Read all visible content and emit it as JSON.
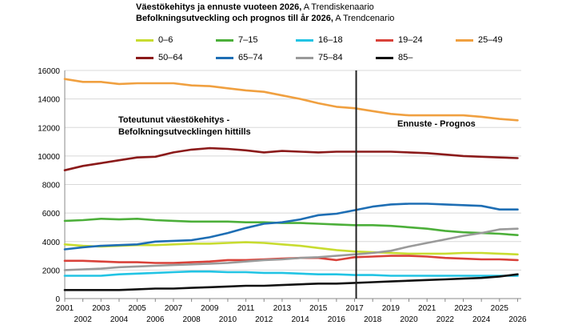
{
  "chart_data": {
    "type": "line",
    "title_fi_bold": "Väestökehitys ja ennuste vuoteen 2026,",
    "title_fi_rest": " A Trendiskenaario",
    "title_sv_bold": "Befolkningsutveckling och prognos till år 2026,",
    "title_sv_rest": " A Trendcenario",
    "x": [
      2001,
      2002,
      2003,
      2004,
      2005,
      2006,
      2007,
      2008,
      2009,
      2010,
      2011,
      2012,
      2013,
      2014,
      2015,
      2016,
      2017,
      2018,
      2019,
      2020,
      2021,
      2022,
      2023,
      2024,
      2025,
      2026
    ],
    "x_ticks_top": [
      "2001",
      "2003",
      "2005",
      "2007",
      "2009",
      "2011",
      "2013",
      "2015",
      "2017",
      "2019",
      "2021",
      "2023",
      "2025"
    ],
    "x_ticks_bottom": [
      "2002",
      "2004",
      "2006",
      "2008",
      "2010",
      "2012",
      "2014",
      "2016",
      "2018",
      "2020",
      "2022",
      "2024",
      "2026"
    ],
    "ylim": [
      0,
      16000
    ],
    "y_ticks": [
      "0",
      "2000",
      "4000",
      "6000",
      "8000",
      "10000",
      "12000",
      "14000",
      "16000"
    ],
    "y_tick_values": [
      0,
      2000,
      4000,
      6000,
      8000,
      10000,
      12000,
      14000,
      16000
    ],
    "grid": true,
    "forecast_start_year": 2017,
    "annotation_left_1": "Toteutunut väestökehitys -",
    "annotation_left_2": "Befolkningsutvecklingen hittills",
    "annotation_right": "Ennuste - Prognos",
    "series": [
      {
        "name": "0–6",
        "color": "#c8dc30",
        "values": [
          3800,
          3700,
          3650,
          3700,
          3750,
          3750,
          3800,
          3850,
          3850,
          3900,
          3950,
          3900,
          3800,
          3700,
          3550,
          3400,
          3300,
          3250,
          3200,
          3150,
          3150,
          3150,
          3200,
          3200,
          3150,
          3100
        ]
      },
      {
        "name": "7–15",
        "color": "#4caf3a",
        "values": [
          5450,
          5500,
          5600,
          5550,
          5600,
          5500,
          5450,
          5400,
          5400,
          5400,
          5350,
          5350,
          5300,
          5300,
          5250,
          5200,
          5150,
          5150,
          5100,
          5000,
          4900,
          4750,
          4650,
          4600,
          4550,
          4450
        ]
      },
      {
        "name": "16–18",
        "color": "#22c4e4",
        "values": [
          1600,
          1600,
          1600,
          1700,
          1750,
          1800,
          1850,
          1900,
          1900,
          1850,
          1850,
          1800,
          1800,
          1750,
          1700,
          1700,
          1650,
          1650,
          1600,
          1600,
          1600,
          1600,
          1600,
          1600,
          1600,
          1600
        ]
      },
      {
        "name": "19–24",
        "color": "#d9423a",
        "values": [
          2650,
          2650,
          2600,
          2550,
          2550,
          2500,
          2500,
          2550,
          2600,
          2700,
          2700,
          2750,
          2800,
          2850,
          2850,
          2700,
          2900,
          2950,
          3000,
          3000,
          2950,
          2850,
          2800,
          2750,
          2750,
          2700
        ]
      },
      {
        "name": "25–49",
        "color": "#f0a040",
        "values": [
          15400,
          15200,
          15200,
          15050,
          15100,
          15100,
          15100,
          14950,
          14900,
          14750,
          14600,
          14500,
          14250,
          14000,
          13700,
          13450,
          13350,
          13150,
          12950,
          12850,
          12850,
          12850,
          12850,
          12750,
          12600,
          12500
        ]
      },
      {
        "name": "50–64",
        "color": "#8b1a1a",
        "values": [
          9000,
          9300,
          9500,
          9700,
          9900,
          9950,
          10250,
          10450,
          10550,
          10500,
          10400,
          10250,
          10350,
          10300,
          10250,
          10300,
          10300,
          10300,
          10300,
          10250,
          10200,
          10100,
          10000,
          9950,
          9900,
          9850
        ]
      },
      {
        "name": "65–74",
        "color": "#1e6eb4",
        "values": [
          3450,
          3600,
          3700,
          3750,
          3800,
          4000,
          4050,
          4100,
          4300,
          4600,
          4950,
          5250,
          5350,
          5550,
          5850,
          5950,
          6200,
          6450,
          6600,
          6650,
          6650,
          6600,
          6550,
          6500,
          6250,
          6250
        ]
      },
      {
        "name": "75–84",
        "color": "#9a9a9a",
        "values": [
          2000,
          2050,
          2100,
          2200,
          2250,
          2300,
          2350,
          2400,
          2450,
          2500,
          2600,
          2700,
          2750,
          2850,
          2900,
          3000,
          3100,
          3200,
          3350,
          3650,
          3900,
          4150,
          4400,
          4600,
          4850,
          4900
        ]
      },
      {
        "name": "85–",
        "color": "#111111",
        "values": [
          600,
          600,
          600,
          600,
          650,
          700,
          700,
          750,
          800,
          850,
          900,
          900,
          950,
          1000,
          1050,
          1050,
          1100,
          1150,
          1200,
          1250,
          1300,
          1350,
          1400,
          1450,
          1550,
          1700
        ]
      }
    ]
  }
}
